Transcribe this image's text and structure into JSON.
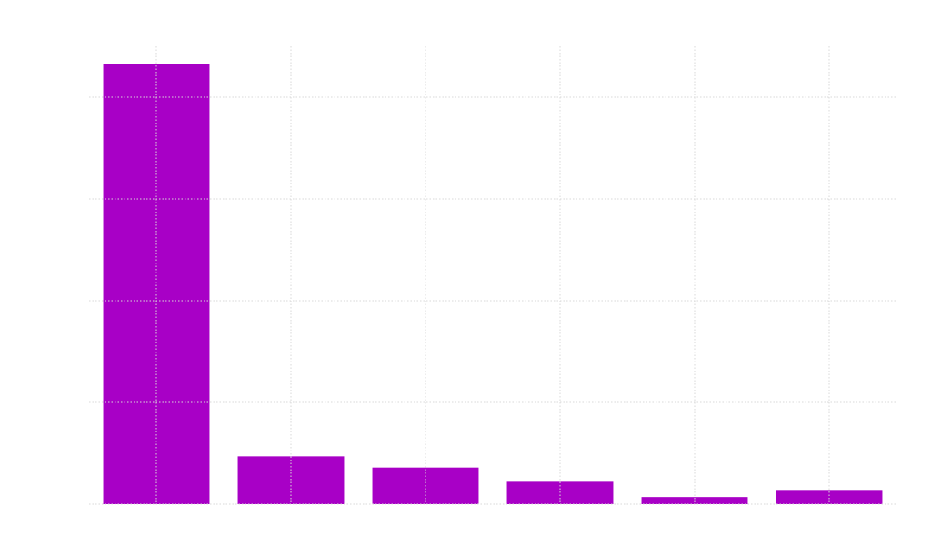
{
  "chart_data": {
    "type": "bar",
    "categories": [
      null,
      null,
      null,
      null,
      null,
      null
    ],
    "values": [
      4.33,
      0.47,
      0.36,
      0.22,
      0.07,
      0.14
    ],
    "color": "#a800c6",
    "ylim": [
      0,
      4.5
    ],
    "yticks": [
      0,
      1,
      2,
      3,
      4
    ],
    "grid": true
  }
}
